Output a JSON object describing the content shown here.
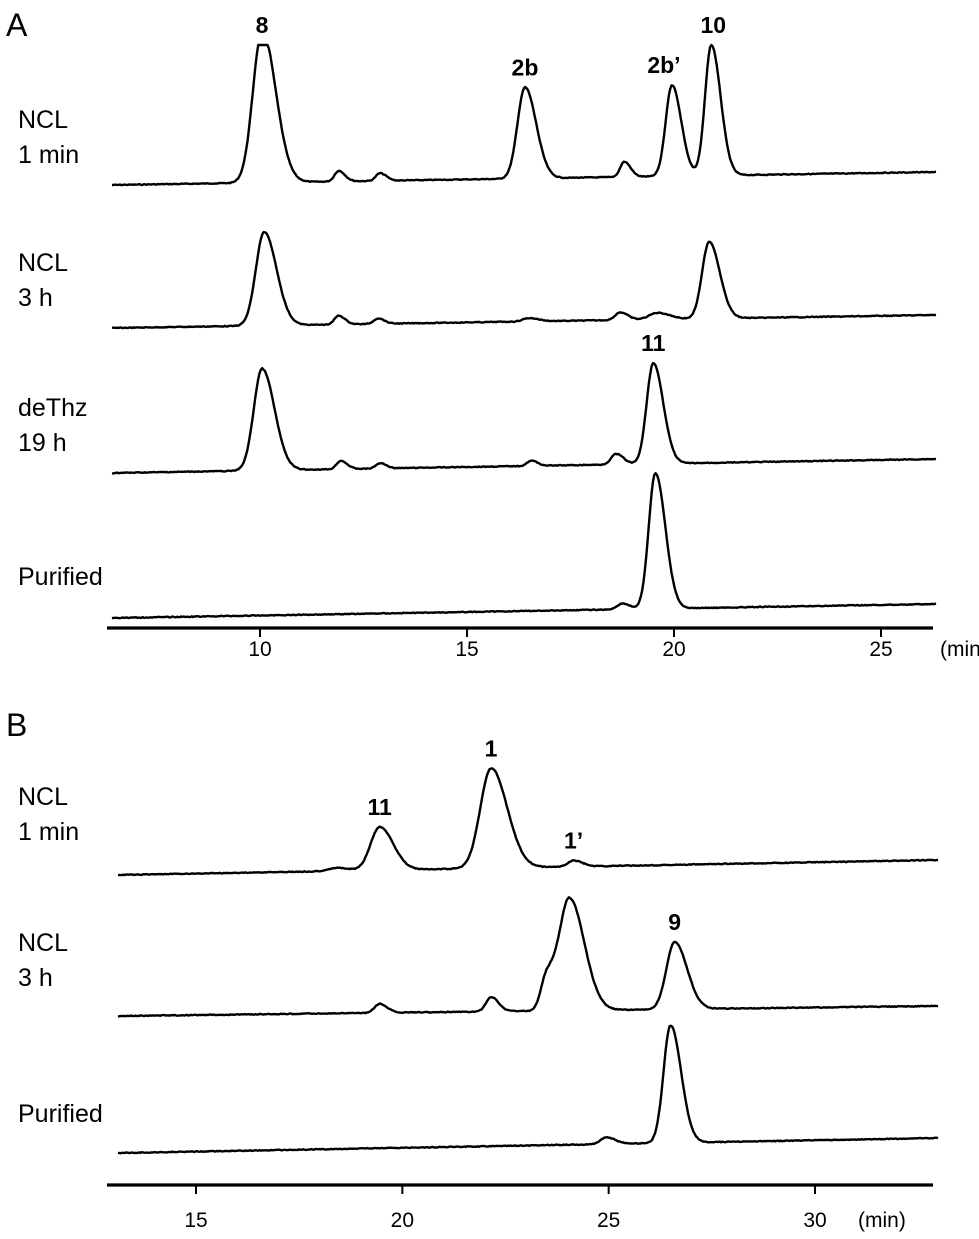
{
  "chart_data": [
    {
      "type": "line",
      "panel_label": "A",
      "x_unit": "(min)",
      "xlim": [
        6.2,
        26.3
      ],
      "ticks": [
        "10",
        "15",
        "20",
        "25"
      ],
      "baseline_note": "chromatograms stacked vertically",
      "series": [
        {
          "label_lines": [
            "NCL",
            "1 min"
          ],
          "baseline": [
            0.0,
            0.16
          ],
          "peaks": [
            {
              "x": 10.05,
              "height": 1.0,
              "width": 0.22,
              "label": "8",
              "clipped": true
            },
            {
              "x": 11.9,
              "height": 0.07,
              "width": 0.1
            },
            {
              "x": 12.9,
              "height": 0.05,
              "width": 0.1
            },
            {
              "x": 16.4,
              "height": 0.6,
              "width": 0.18,
              "label": "2b"
            },
            {
              "x": 18.8,
              "height": 0.1,
              "width": 0.1
            },
            {
              "x": 19.95,
              "height": 0.6,
              "width": 0.15,
              "label": "2b’"
            },
            {
              "x": 20.9,
              "height": 0.86,
              "width": 0.15,
              "label": "10"
            }
          ]
        },
        {
          "label_lines": [
            "NCL",
            "3 h"
          ],
          "baseline": [
            0.0,
            0.14
          ],
          "peaks": [
            {
              "x": 10.1,
              "height": 0.85,
              "width": 0.2
            },
            {
              "x": 11.9,
              "height": 0.08,
              "width": 0.1
            },
            {
              "x": 12.85,
              "height": 0.05,
              "width": 0.1
            },
            {
              "x": 16.5,
              "height": 0.03,
              "width": 0.15
            },
            {
              "x": 18.7,
              "height": 0.07,
              "width": 0.12
            },
            {
              "x": 19.6,
              "height": 0.06,
              "width": 0.2
            },
            {
              "x": 20.85,
              "height": 0.7,
              "width": 0.17
            }
          ]
        },
        {
          "label_lines": [
            "deThz",
            "19 h"
          ],
          "baseline": [
            0.0,
            0.12
          ],
          "peaks": [
            {
              "x": 10.05,
              "height": 0.97,
              "width": 0.2
            },
            {
              "x": 11.95,
              "height": 0.08,
              "width": 0.1
            },
            {
              "x": 12.9,
              "height": 0.05,
              "width": 0.1
            },
            {
              "x": 16.55,
              "height": 0.05,
              "width": 0.1
            },
            {
              "x": 18.6,
              "height": 0.1,
              "width": 0.12
            },
            {
              "x": 19.5,
              "height": 0.96,
              "width": 0.16,
              "label": "11"
            }
          ]
        },
        {
          "label_lines": [
            "Purified",
            ""
          ],
          "baseline": [
            0.0,
            0.1
          ],
          "peaks": [
            {
              "x": 19.55,
              "height": 1.15,
              "width": 0.16
            },
            {
              "x": 18.75,
              "height": 0.05,
              "width": 0.12
            }
          ]
        }
      ]
    },
    {
      "type": "line",
      "panel_label": "B",
      "x_unit": "(min)",
      "xlim": [
        13.0,
        32.9
      ],
      "ticks": [
        "15",
        "20",
        "25",
        "30"
      ],
      "series": [
        {
          "label_lines": [
            "NCL",
            "1 min"
          ],
          "baseline": [
            0.0,
            0.1
          ],
          "peaks": [
            {
              "x": 19.45,
              "height": 0.42,
              "width": 0.22,
              "label": "11"
            },
            {
              "x": 22.15,
              "height": 0.97,
              "width": 0.26,
              "label": "1"
            },
            {
              "x": 24.15,
              "height": 0.06,
              "width": 0.14,
              "label": "1’"
            },
            {
              "x": 18.4,
              "height": 0.03,
              "width": 0.2
            }
          ]
        },
        {
          "label_lines": [
            "NCL",
            "3 h"
          ],
          "baseline": [
            0.0,
            0.06
          ],
          "peaks": [
            {
              "x": 19.45,
              "height": 0.08,
              "width": 0.12
            },
            {
              "x": 22.15,
              "height": 0.13,
              "width": 0.12
            },
            {
              "x": 23.5,
              "height": 0.3,
              "width": 0.14
            },
            {
              "x": 24.05,
              "height": 1.0,
              "width": 0.24
            },
            {
              "x": 26.6,
              "height": 0.6,
              "width": 0.2,
              "label": "9"
            }
          ]
        },
        {
          "label_lines": [
            "Purified",
            ""
          ],
          "baseline": [
            0.0,
            0.08
          ],
          "peaks": [
            {
              "x": 24.95,
              "height": 0.06,
              "width": 0.14
            },
            {
              "x": 26.5,
              "height": 1.05,
              "width": 0.17
            }
          ]
        }
      ]
    }
  ]
}
